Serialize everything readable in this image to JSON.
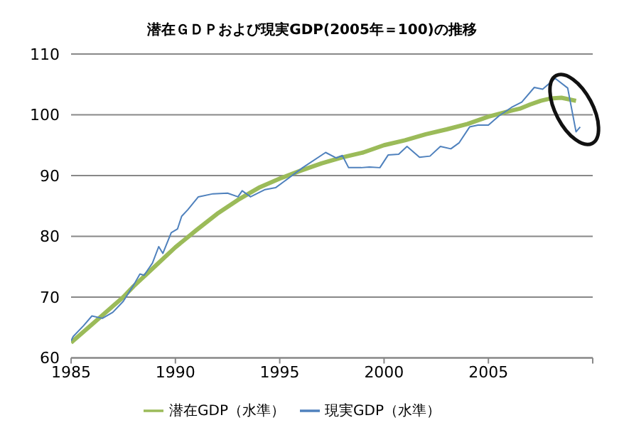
{
  "chart_data": {
    "type": "line",
    "title": "潜在ＧＤＰおよび現実GDP(2005年＝100)の推移",
    "xlim": [
      1985,
      2010
    ],
    "xticks": [
      1985,
      1990,
      1995,
      2000,
      2005,
      {
        "value": 2010,
        "label": null
      }
    ],
    "ylim": [
      60,
      110
    ],
    "yticks": [
      60,
      70,
      80,
      90,
      100,
      110
    ],
    "grid": "y",
    "legend": "bottom",
    "marker": "none",
    "line_style": "solid",
    "series": [
      {
        "name": "潜在GDP（水準）",
        "color": "#9bbb59",
        "x": [
          1985,
          1986,
          1987,
          1987.5,
          1988,
          1989,
          1990,
          1991,
          1992,
          1993,
          1994,
          1995,
          1996,
          1997,
          1998,
          1999,
          2000,
          2001,
          2002,
          2003,
          2004,
          2005,
          2006,
          2006.5,
          2007,
          2007.5,
          2008,
          2008.5,
          2009.2
        ],
        "values": [
          62.5,
          65.5,
          68.5,
          70,
          71.8,
          75,
          78.2,
          81,
          83.7,
          86,
          88,
          89.5,
          90.8,
          92,
          93,
          93.8,
          95,
          95.8,
          96.8,
          97.6,
          98.5,
          99.7,
          100.6,
          101,
          101.7,
          102.3,
          102.7,
          102.8,
          102.3
        ]
      },
      {
        "name": "現実GDP（水準）",
        "color": "#4f81bd",
        "x": [
          1985,
          1985.1,
          1985.6,
          1986,
          1986.5,
          1987,
          1987.5,
          1988,
          1988.3,
          1988.5,
          1988.9,
          1989.2,
          1989.4,
          1989.8,
          1990.1,
          1990.3,
          1990.6,
          1991.1,
          1991.8,
          1992.5,
          1993,
          1993.2,
          1993.6,
          1994.3,
          1994.8,
          1995.2,
          1996.1,
          1997.2,
          1997.7,
          1998,
          1998.3,
          1998.9,
          1999.3,
          1999.8,
          2000.2,
          2000.7,
          2001.1,
          2001.7,
          2002.2,
          2002.7,
          2003.2,
          2003.6,
          2004.1,
          2004.5,
          2005,
          2005.5,
          2006.1,
          2006.6,
          2007.2,
          2007.6,
          2008.2,
          2008.8,
          2009.2,
          2009.4
        ],
        "values": [
          62.8,
          63.5,
          65.3,
          66.9,
          66.5,
          67.5,
          69.3,
          72,
          73.8,
          73.6,
          75.6,
          78.3,
          77.2,
          80.6,
          81.2,
          83.3,
          84.4,
          86.5,
          87,
          87.1,
          86.5,
          87.5,
          86.5,
          87.7,
          88,
          89,
          91.3,
          93.8,
          92.9,
          93.3,
          91.3,
          91.3,
          91.4,
          91.3,
          93.4,
          93.5,
          94.8,
          93,
          93.2,
          94.8,
          94.4,
          95.4,
          98,
          98.3,
          98.3,
          99.8,
          101.2,
          102.1,
          104.5,
          104.2,
          106,
          104.4,
          97.2,
          98
        ]
      }
    ]
  }
}
